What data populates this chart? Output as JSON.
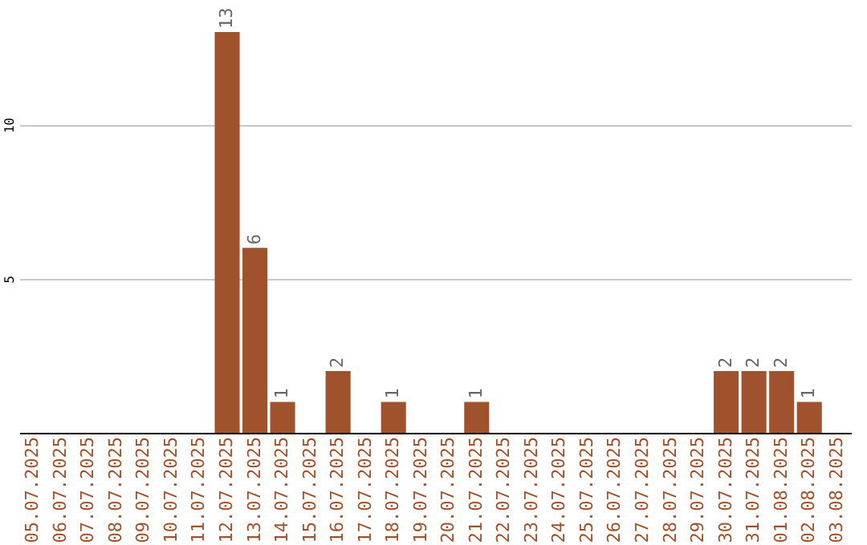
{
  "chart_data": {
    "type": "bar",
    "categories": [
      "05.07.2025",
      "06.07.2025",
      "07.07.2025",
      "08.07.2025",
      "09.07.2025",
      "10.07.2025",
      "11.07.2025",
      "12.07.2025",
      "13.07.2025",
      "14.07.2025",
      "15.07.2025",
      "16.07.2025",
      "17.07.2025",
      "18.07.2025",
      "19.07.2025",
      "20.07.2025",
      "21.07.2025",
      "22.07.2025",
      "23.07.2025",
      "24.07.2025",
      "25.07.2025",
      "26.07.2025",
      "27.07.2025",
      "28.07.2025",
      "29.07.2025",
      "30.07.2025",
      "31.07.2025",
      "01.08.2025",
      "02.08.2025",
      "03.08.2025"
    ],
    "values": [
      0,
      0,
      0,
      0,
      0,
      0,
      0,
      13,
      6,
      1,
      0,
      2,
      0,
      1,
      0,
      0,
      1,
      0,
      0,
      0,
      0,
      0,
      0,
      0,
      0,
      2,
      2,
      2,
      1,
      0
    ],
    "value_labels": [
      null,
      null,
      null,
      null,
      null,
      null,
      null,
      "13",
      "6",
      "1",
      null,
      "2",
      null,
      "1",
      null,
      null,
      "1",
      null,
      null,
      null,
      null,
      null,
      null,
      null,
      null,
      "2",
      "2",
      "2",
      "1",
      null
    ],
    "color": "#a0522d",
    "ylim": [
      0,
      13
    ],
    "yticks": [
      5,
      10
    ],
    "grid": "y"
  }
}
